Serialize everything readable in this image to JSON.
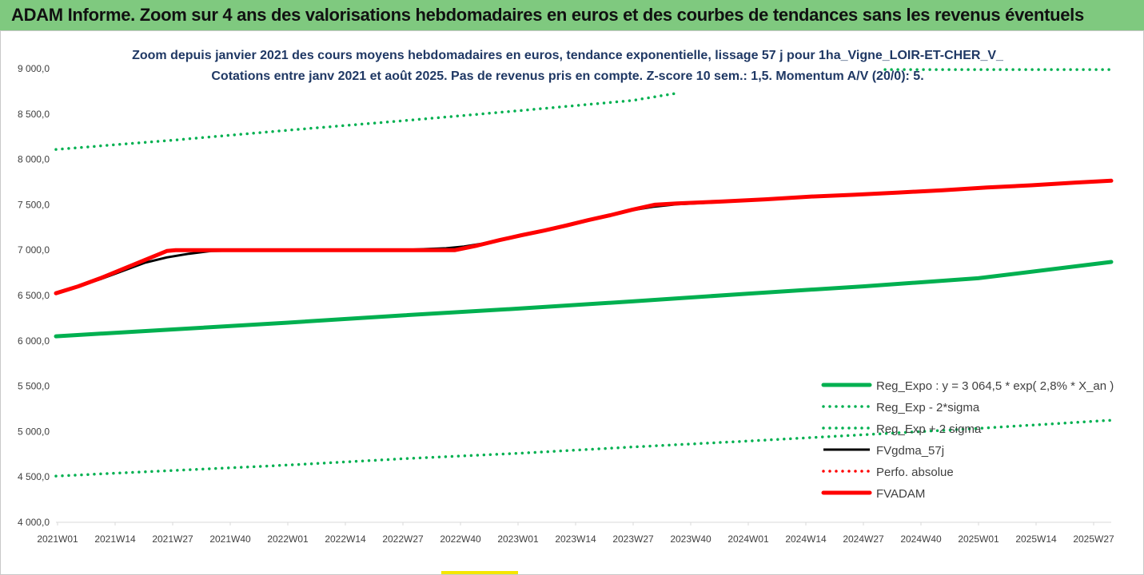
{
  "banner": {
    "title": "ADAM Informe. Zoom sur 4 ans des valorisations hebdomadaires en euros et des courbes de tendances sans les revenus éventuels"
  },
  "colors": {
    "banner_bg": "#7fc97f",
    "reg_expo": "#00b050",
    "fvgdma": "#000000",
    "perfo": "#ff0000",
    "fvadam": "#ff0000"
  },
  "chart_data": {
    "type": "line",
    "title": [
      "Zoom depuis janvier 2021 des cours moyens hebdomadaires en euros, tendance exponentielle, lissage 57 j pour 1ha_Vigne_LOIR-ET-CHER_V_",
      "Cotations entre janv 2021 et août 2025.  Pas de revenus pris en compte. Z-score 10 sem.: 1,5. Momentum A/V (20/0): 5."
    ],
    "x_tick_labels": [
      "2021W01",
      "2021W14",
      "2021W27",
      "2021W40",
      "2022W01",
      "2022W14",
      "2022W27",
      "2022W40",
      "2023W01",
      "2023W14",
      "2023W27",
      "2023W40",
      "2024W01",
      "2024W14",
      "2024W27",
      "2024W40",
      "2025W01",
      "2025W14",
      "2025W27"
    ],
    "y_tick_labels": [
      "4 000,0",
      "4 500,0",
      "5 000,0",
      "5 500,0",
      "6 000,0",
      "6 500,0",
      "7 000,0",
      "7 500,0",
      "8 000,0",
      "8 500,0",
      "9 000,0"
    ],
    "ylim": [
      4000,
      9000
    ],
    "x_unit": "week index from 2021W01",
    "xlim": [
      0,
      238
    ],
    "grid": false,
    "legend_position": "bottom-right",
    "series": [
      {
        "name": "Reg_Expo : y = 3 064,5 * exp( 2,8% *  X_an )",
        "style": "solid-thick",
        "color": "#00b050",
        "points": [
          [
            0,
            6050
          ],
          [
            26,
            6125
          ],
          [
            52,
            6200
          ],
          [
            78,
            6280
          ],
          [
            104,
            6355
          ],
          [
            130,
            6435
          ],
          [
            156,
            6520
          ],
          [
            182,
            6600
          ],
          [
            208,
            6690
          ],
          [
            238,
            6870
          ]
        ]
      },
      {
        "name": "Reg_Exp - 2*sigma",
        "style": "dotted",
        "color": "#00b050",
        "points": [
          [
            0,
            4510
          ],
          [
            26,
            4570
          ],
          [
            52,
            4630
          ],
          [
            78,
            4700
          ],
          [
            104,
            4760
          ],
          [
            130,
            4830
          ],
          [
            156,
            4895
          ],
          [
            182,
            4965
          ],
          [
            208,
            5035
          ],
          [
            238,
            5125
          ]
        ]
      },
      {
        "name": "Reg_Exp + 2 sigma",
        "style": "dotted",
        "color": "#00b050",
        "points": [
          [
            0,
            8110
          ],
          [
            26,
            8210
          ],
          [
            52,
            8320
          ],
          [
            78,
            8425
          ],
          [
            104,
            8535
          ],
          [
            130,
            8650
          ],
          [
            140,
            8730
          ]
        ],
        "points_tail": [
          [
            187,
            8990
          ],
          [
            238,
            8990
          ]
        ]
      },
      {
        "name": "FVgdma_57j",
        "style": "solid",
        "color": "#000000",
        "points": [
          [
            0,
            6530
          ],
          [
            5,
            6600
          ],
          [
            10,
            6680
          ],
          [
            15,
            6770
          ],
          [
            20,
            6860
          ],
          [
            25,
            6920
          ],
          [
            30,
            6960
          ],
          [
            35,
            6990
          ],
          [
            40,
            6995
          ],
          [
            50,
            7000
          ],
          [
            60,
            7000
          ],
          [
            70,
            7000
          ],
          [
            80,
            7005
          ],
          [
            88,
            7020
          ],
          [
            92,
            7040
          ],
          [
            96,
            7070
          ],
          [
            100,
            7110
          ],
          [
            105,
            7160
          ],
          [
            110,
            7210
          ],
          [
            115,
            7270
          ],
          [
            120,
            7330
          ],
          [
            125,
            7385
          ],
          [
            130,
            7440
          ],
          [
            135,
            7480
          ],
          [
            140,
            7505
          ],
          [
            150,
            7530
          ],
          [
            160,
            7560
          ],
          [
            170,
            7590
          ],
          [
            180,
            7610
          ],
          [
            190,
            7635
          ],
          [
            200,
            7660
          ],
          [
            210,
            7690
          ],
          [
            220,
            7715
          ],
          [
            230,
            7745
          ],
          [
            238,
            7765
          ]
        ]
      },
      {
        "name": "Perfo. absolue",
        "style": "dotted",
        "color": "#ff0000",
        "points": []
      },
      {
        "name": "FVADAM",
        "style": "solid-thick",
        "color": "#ff0000",
        "points": [
          [
            0,
            6525
          ],
          [
            5,
            6600
          ],
          [
            10,
            6690
          ],
          [
            15,
            6790
          ],
          [
            20,
            6890
          ],
          [
            25,
            6990
          ],
          [
            27,
            7000
          ],
          [
            40,
            7000
          ],
          [
            50,
            7000
          ],
          [
            60,
            7000
          ],
          [
            70,
            7000
          ],
          [
            80,
            7000
          ],
          [
            90,
            7000
          ],
          [
            95,
            7050
          ],
          [
            100,
            7110
          ],
          [
            105,
            7165
          ],
          [
            110,
            7215
          ],
          [
            115,
            7270
          ],
          [
            120,
            7330
          ],
          [
            125,
            7385
          ],
          [
            130,
            7445
          ],
          [
            135,
            7500
          ],
          [
            140,
            7515
          ],
          [
            150,
            7535
          ],
          [
            160,
            7560
          ],
          [
            170,
            7590
          ],
          [
            180,
            7610
          ],
          [
            190,
            7635
          ],
          [
            200,
            7660
          ],
          [
            210,
            7690
          ],
          [
            220,
            7715
          ],
          [
            230,
            7745
          ],
          [
            238,
            7765
          ]
        ]
      }
    ]
  }
}
